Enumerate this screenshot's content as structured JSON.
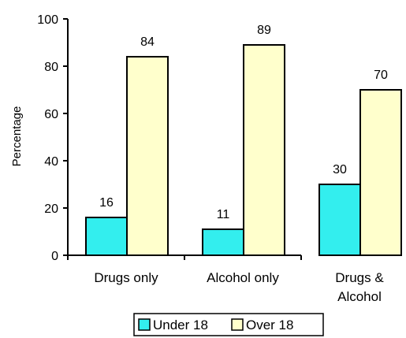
{
  "chart_data": {
    "type": "bar",
    "categories": [
      [
        "Drugs only"
      ],
      [
        "Alcohol only"
      ],
      [
        "Drugs &",
        "Alcohol"
      ]
    ],
    "series": [
      {
        "name": "Under 18",
        "values": [
          16,
          11,
          30
        ],
        "color": "#33eeee"
      },
      {
        "name": "Over 18",
        "values": [
          84,
          89,
          70
        ],
        "color": "#ffffcc"
      }
    ],
    "ylabel": "Percentage",
    "ylim": [
      0,
      100
    ],
    "yticks": [
      0,
      20,
      40,
      60,
      80,
      100
    ],
    "data_labels": true,
    "legend": "bottom",
    "grid": false
  }
}
